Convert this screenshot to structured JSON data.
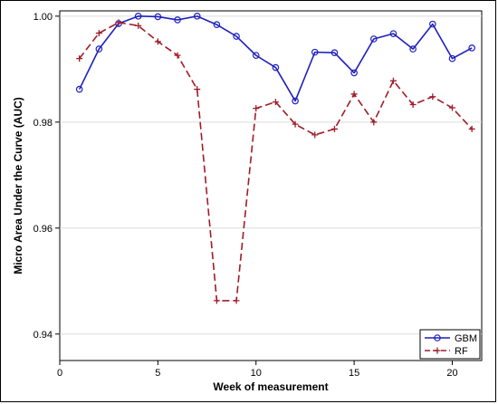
{
  "chart_data": {
    "type": "line",
    "title": "",
    "xlabel": "Week of measurement",
    "ylabel": "Micro Area Under the Curve (AUC)",
    "xlim": [
      0,
      21.5
    ],
    "ylim": [
      0.935,
      1.001
    ],
    "x_ticks": [
      0,
      5,
      10,
      15,
      20
    ],
    "y_ticks": [
      0.94,
      0.96,
      0.98,
      1.0
    ],
    "x_tick_labels": [
      "0",
      "5",
      "10",
      "15",
      "20"
    ],
    "y_tick_labels": [
      "0.94",
      "0.96",
      "0.98",
      "1.00"
    ],
    "grid": "horizontal",
    "legend_position": "bottom-right",
    "x": [
      1,
      2,
      3,
      4,
      5,
      6,
      7,
      8,
      9,
      10,
      11,
      12,
      13,
      14,
      15,
      16,
      17,
      18,
      19,
      20,
      21
    ],
    "series": [
      {
        "name": "GBM",
        "color": "#1f1fbf",
        "dash": "solid",
        "marker": "circle",
        "values": [
          0.9862,
          0.9938,
          0.9986,
          1.0,
          0.9999,
          0.9993,
          1.0,
          0.9984,
          0.9962,
          0.9926,
          0.9903,
          0.984,
          0.9932,
          0.9931,
          0.9893,
          0.9957,
          0.9967,
          0.9938,
          0.9985,
          0.992,
          0.994
        ]
      },
      {
        "name": "RF",
        "color": "#a01c28",
        "dash": "dashed",
        "marker": "plus",
        "values": [
          0.992,
          0.9968,
          0.9988,
          0.9982,
          0.9952,
          0.9926,
          0.9862,
          0.9463,
          0.9463,
          0.9826,
          0.9838,
          0.9796,
          0.9776,
          0.9787,
          0.9853,
          0.98,
          0.9878,
          0.9833,
          0.9848,
          0.9827,
          0.9787
        ]
      }
    ]
  }
}
